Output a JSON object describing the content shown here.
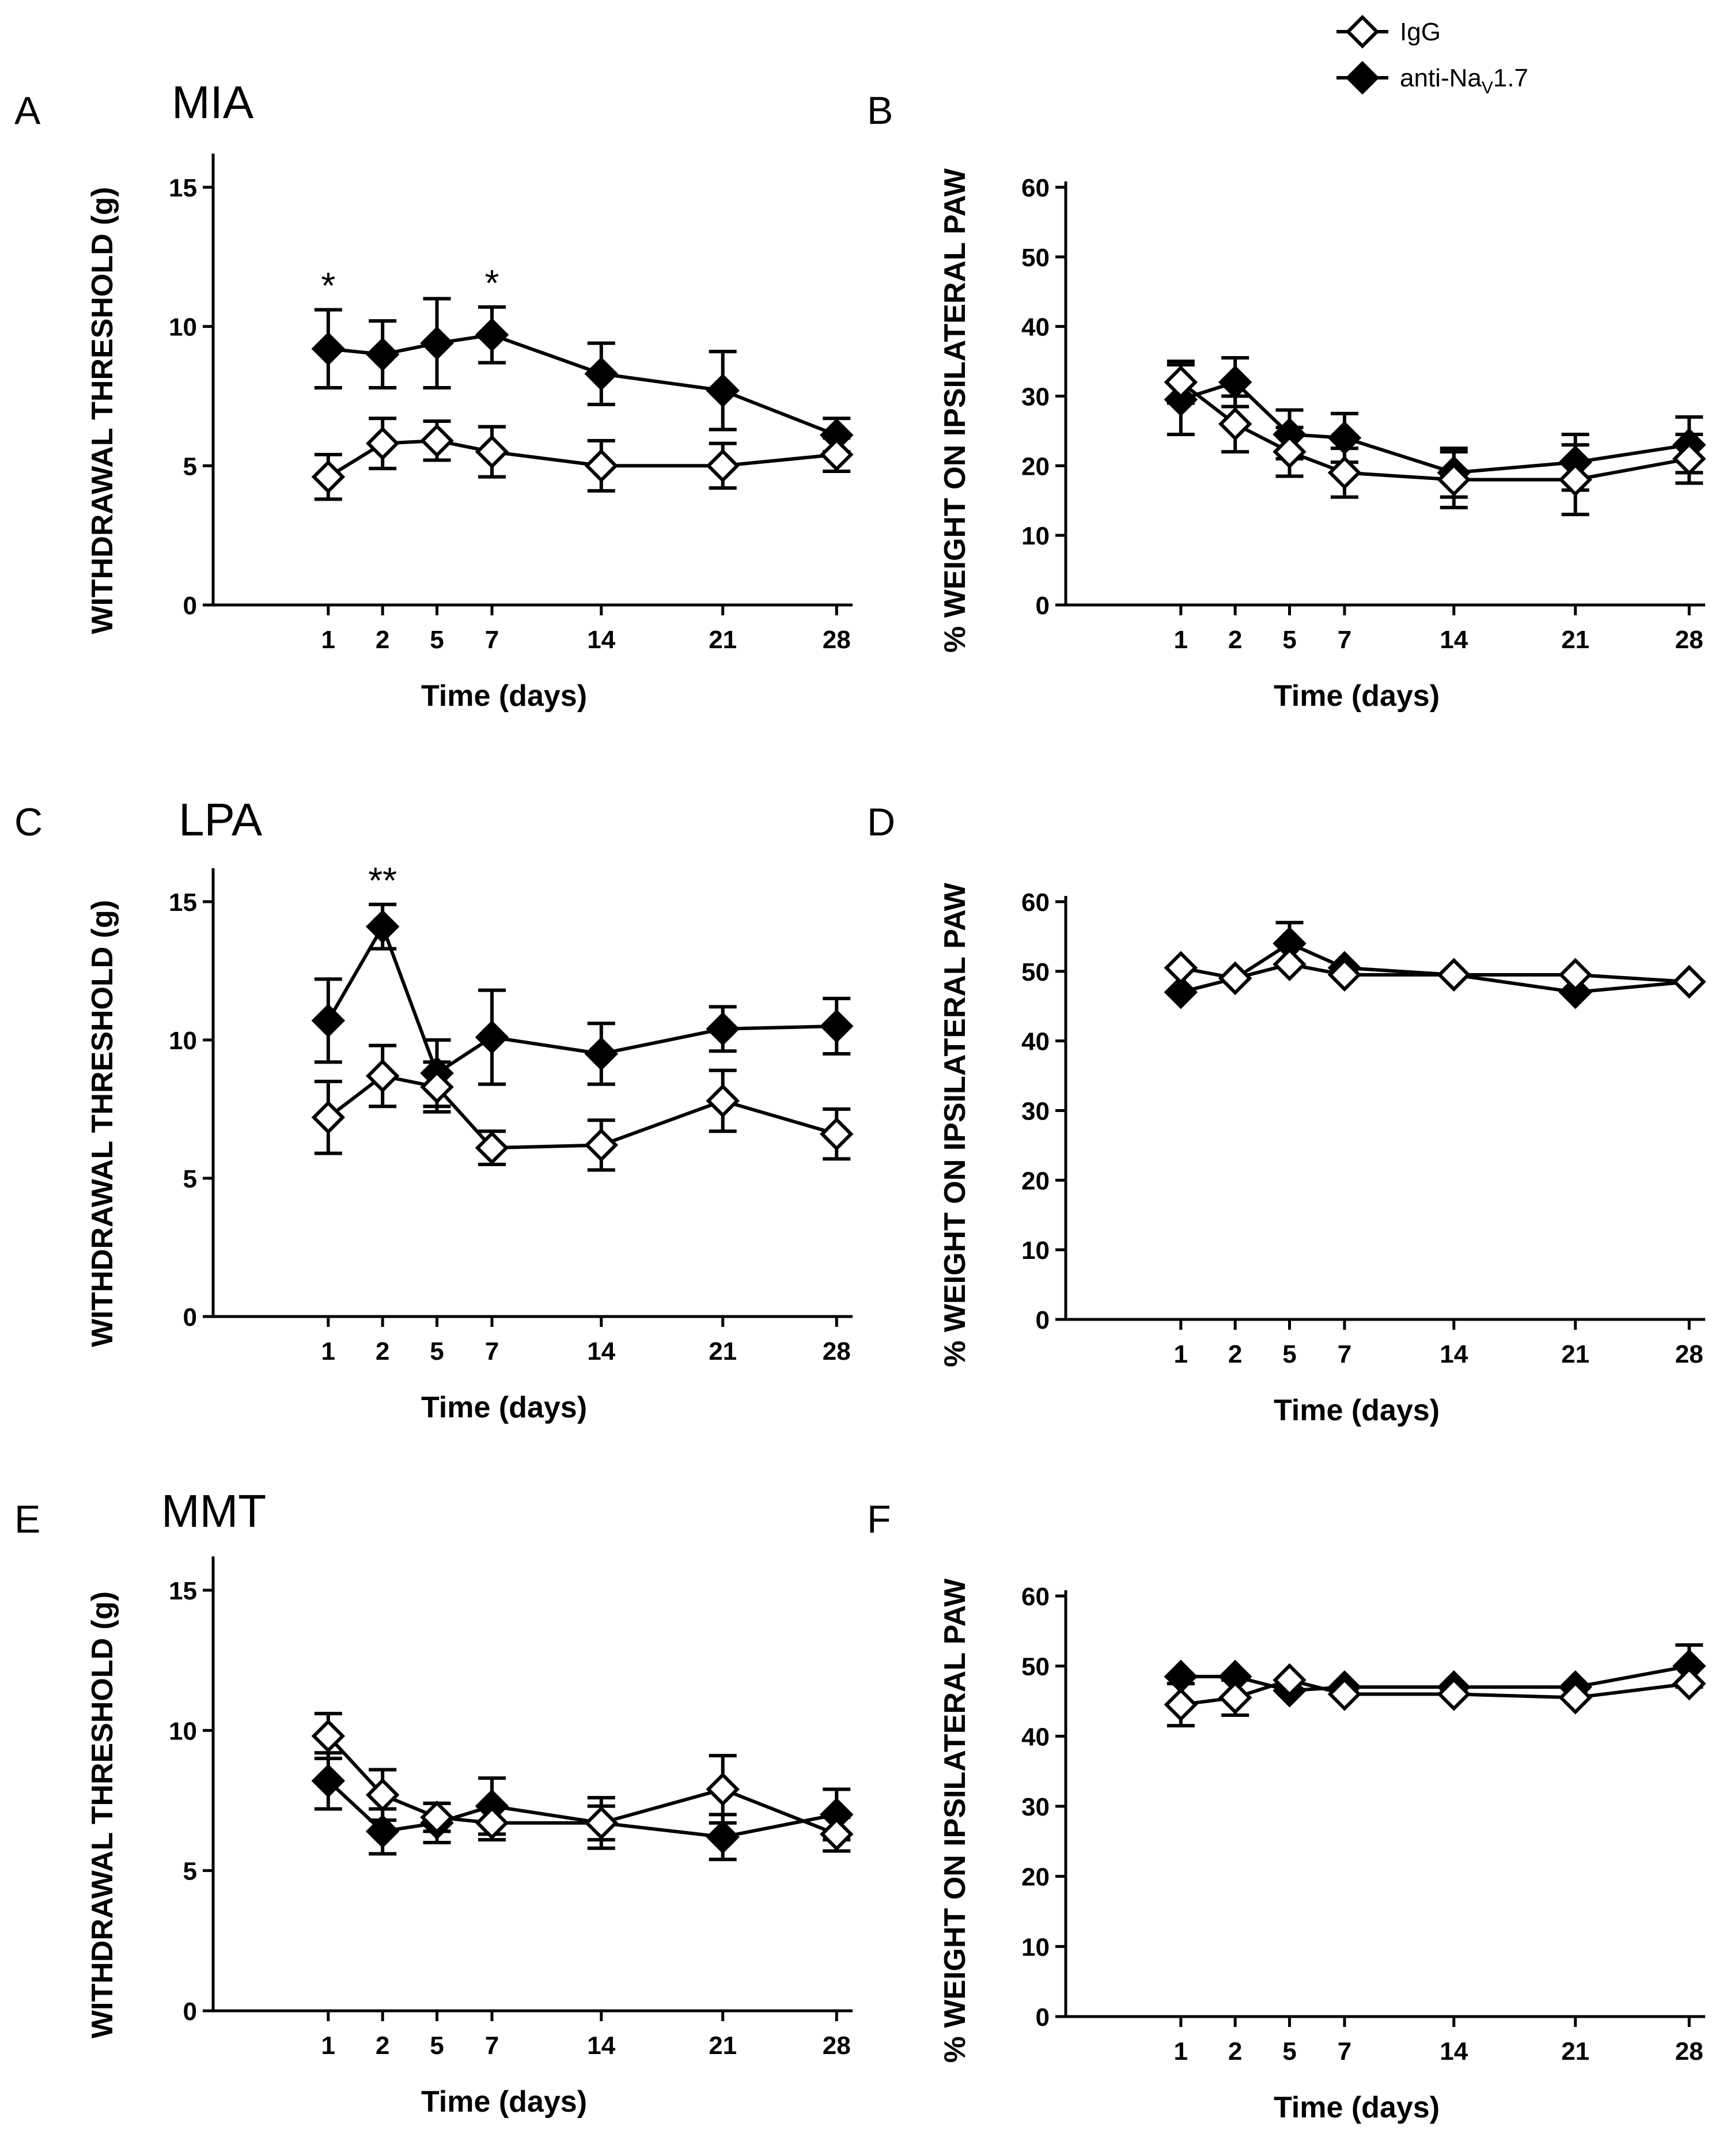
{
  "legend": {
    "igg_label": "IgG",
    "nav_label_main": "anti-Na",
    "nav_label_sub": "V",
    "nav_label_tail": "1.7"
  },
  "colors": {
    "igg_fill": "#ffffff",
    "nav_fill": "#000000",
    "line": "#000000"
  },
  "chart_data": [
    {
      "panel": "A",
      "model": "MIA",
      "type": "line",
      "xlabel": "Time (days)",
      "ylabel": "WITHDRAWAL THRESHOLD (g)",
      "x": [
        1,
        2,
        5,
        7,
        14,
        21,
        28
      ],
      "x_tick_labels": [
        "1",
        "2",
        "5",
        "7",
        "14",
        "21",
        "28"
      ],
      "y_ticks": [
        0,
        5,
        10,
        15
      ],
      "ylim": [
        0,
        16
      ],
      "series": [
        {
          "name": "IgG",
          "values": [
            4.6,
            5.8,
            5.9,
            5.5,
            5.0,
            5.0,
            5.4
          ],
          "err": [
            0.8,
            0.9,
            0.7,
            0.9,
            0.9,
            0.8,
            0.6
          ]
        },
        {
          "name": "anti-Nav1.7",
          "values": [
            9.2,
            9.0,
            9.4,
            9.7,
            8.3,
            7.7,
            6.1
          ],
          "err": [
            1.4,
            1.2,
            1.6,
            1.0,
            1.1,
            1.4,
            0.6
          ]
        }
      ],
      "annotations": [
        {
          "x": 1,
          "text": "*"
        },
        {
          "x": 7,
          "text": "*"
        }
      ]
    },
    {
      "panel": "B",
      "model": "",
      "type": "line",
      "xlabel": "Time (days)",
      "ylabel": "% WEIGHT ON IPSILATERAL PAW",
      "x": [
        1,
        2,
        5,
        7,
        14,
        21,
        28
      ],
      "x_tick_labels": [
        "1",
        "2",
        "5",
        "7",
        "14",
        "21",
        "28"
      ],
      "y_ticks": [
        0,
        10,
        20,
        30,
        40,
        50,
        60
      ],
      "ylim": [
        0,
        60
      ],
      "series": [
        {
          "name": "IgG",
          "values": [
            32,
            26,
            22,
            19,
            18,
            18,
            21
          ],
          "err": [
            3,
            4,
            3.5,
            3.5,
            4,
            5,
            3.5
          ]
        },
        {
          "name": "anti-Nav1.7",
          "values": [
            29.5,
            32,
            24.5,
            24,
            19,
            20.5,
            23
          ],
          "err": [
            5,
            3.5,
            3.5,
            3.5,
            3.5,
            4,
            4
          ]
        }
      ],
      "annotations": []
    },
    {
      "panel": "C",
      "model": "LPA",
      "type": "line",
      "xlabel": "Time (days)",
      "ylabel": "WITHDRAWAL THRESHOLD (g)",
      "x": [
        1,
        2,
        5,
        7,
        14,
        21,
        28
      ],
      "x_tick_labels": [
        "1",
        "2",
        "5",
        "7",
        "14",
        "21",
        "28"
      ],
      "y_ticks": [
        0,
        5,
        10,
        15
      ],
      "ylim": [
        0,
        16
      ],
      "series": [
        {
          "name": "IgG",
          "values": [
            7.2,
            8.7,
            8.3,
            6.1,
            6.2,
            7.8,
            6.6
          ],
          "err": [
            1.3,
            1.1,
            0.9,
            0.6,
            0.9,
            1.1,
            0.9
          ]
        },
        {
          "name": "anti-Nav1.7",
          "values": [
            10.7,
            14.1,
            8.8,
            10.1,
            9.5,
            10.4,
            10.5
          ],
          "err": [
            1.5,
            0.8,
            1.2,
            1.7,
            1.1,
            0.8,
            1.0
          ]
        }
      ],
      "annotations": [
        {
          "x": 2,
          "text": "**"
        }
      ]
    },
    {
      "panel": "D",
      "model": "",
      "type": "line",
      "xlabel": "Time (days)",
      "ylabel": "% WEIGHT ON IPSILATERAL PAW",
      "x": [
        1,
        2,
        5,
        7,
        14,
        21,
        28
      ],
      "x_tick_labels": [
        "1",
        "2",
        "5",
        "7",
        "14",
        "21",
        "28"
      ],
      "y_ticks": [
        0,
        10,
        20,
        30,
        40,
        50,
        60
      ],
      "ylim": [
        0,
        60
      ],
      "series": [
        {
          "name": "IgG",
          "values": [
            50.5,
            49,
            51,
            49.5,
            49.5,
            49.5,
            48.5
          ],
          "err": [
            0,
            0,
            0,
            0,
            0,
            0,
            0
          ]
        },
        {
          "name": "anti-Nav1.7",
          "values": [
            47,
            49,
            54,
            50.5,
            49.5,
            47,
            48.5
          ],
          "err": [
            0,
            0,
            3,
            0,
            0,
            0,
            0
          ]
        }
      ],
      "annotations": []
    },
    {
      "panel": "E",
      "model": "MMT",
      "type": "line",
      "xlabel": "Time (days)",
      "ylabel": "WITHDRAWAL THRESHOLD (g)",
      "x": [
        1,
        2,
        5,
        7,
        14,
        21,
        28
      ],
      "x_tick_labels": [
        "1",
        "2",
        "5",
        "7",
        "14",
        "21",
        "28"
      ],
      "y_ticks": [
        0,
        5,
        10,
        15
      ],
      "ylim": [
        0,
        16
      ],
      "series": [
        {
          "name": "IgG",
          "values": [
            9.8,
            7.7,
            6.9,
            6.7,
            6.7,
            7.9,
            6.3
          ],
          "err": [
            0.8,
            0.9,
            0.5,
            0.6,
            0.6,
            1.2,
            0.6
          ]
        },
        {
          "name": "anti-Nav1.7",
          "values": [
            8.2,
            6.4,
            6.7,
            7.3,
            6.7,
            6.2,
            7.0
          ],
          "err": [
            1.0,
            0.8,
            0.7,
            1.0,
            0.9,
            0.8,
            0.9
          ]
        }
      ],
      "annotations": []
    },
    {
      "panel": "F",
      "model": "",
      "type": "line",
      "xlabel": "Time (days)",
      "ylabel": "% WEIGHT ON IPSILATERAL PAW",
      "x": [
        1,
        2,
        5,
        7,
        14,
        21,
        28
      ],
      "x_tick_labels": [
        "1",
        "2",
        "5",
        "7",
        "14",
        "21",
        "28"
      ],
      "y_ticks": [
        0,
        10,
        20,
        30,
        40,
        50,
        60
      ],
      "ylim": [
        0,
        60
      ],
      "series": [
        {
          "name": "IgG",
          "values": [
            44.5,
            45.5,
            48,
            46,
            46,
            45.5,
            47.5
          ],
          "err": [
            3,
            2.5,
            0,
            0,
            0,
            0,
            0
          ]
        },
        {
          "name": "anti-Nav1.7",
          "values": [
            48.5,
            48.5,
            46.5,
            47,
            47,
            47,
            50
          ],
          "err": [
            0,
            0,
            0,
            0,
            0,
            0,
            3
          ]
        }
      ],
      "annotations": []
    }
  ]
}
